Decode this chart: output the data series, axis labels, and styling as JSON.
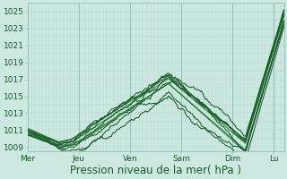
{
  "background_color": "#cce8e0",
  "plot_bg_color": "#cce8e0",
  "grid_color_minor": "#b8d8d0",
  "grid_color_major": "#99bfb8",
  "line_color_dark": "#1a5c2a",
  "line_color_mid": "#2d7a3a",
  "ylim": [
    1008.5,
    1026.0
  ],
  "yticks": [
    1009,
    1011,
    1013,
    1015,
    1017,
    1019,
    1021,
    1023,
    1025
  ],
  "xlabel": "Pression niveau de la mer( hPa )",
  "xlabel_fontsize": 8.5,
  "tick_fontsize": 6.5,
  "days": [
    "Mer",
    "Jeu",
    "Ven",
    "Sam",
    "Dim",
    "Lu"
  ],
  "day_fracs": [
    0.0,
    0.2,
    0.4,
    0.6,
    0.8,
    0.96
  ],
  "total_points": 300
}
